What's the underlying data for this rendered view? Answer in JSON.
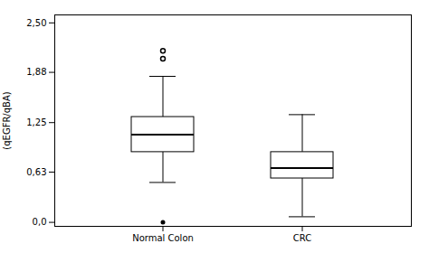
{
  "chart_data": {
    "type": "box",
    "categories": [
      "Normal Colon",
      "CRC"
    ],
    "boxes": [
      {
        "q1": 0.88,
        "median": 1.1,
        "q3": 1.32,
        "whisker_low": 0.5,
        "whisker_high": 1.83,
        "fliers_open": [
          2.05,
          2.15
        ],
        "fliers_filled": [
          0.0
        ]
      },
      {
        "q1": 0.55,
        "median": 0.68,
        "q3": 0.88,
        "whisker_low": 0.07,
        "whisker_high": 1.35,
        "fliers_open": [],
        "fliers_filled": []
      }
    ],
    "ylabel": "(qEGFR/qBA)",
    "ylim": [
      -0.05,
      2.6
    ],
    "yticks": [
      {
        "value": 0.0,
        "label": "0,0"
      },
      {
        "value": 0.63,
        "label": "0,63"
      },
      {
        "value": 1.25,
        "label": "1,25"
      },
      {
        "value": 1.88,
        "label": "1,88"
      },
      {
        "value": 2.5,
        "label": "2,50"
      }
    ],
    "grid": false
  }
}
